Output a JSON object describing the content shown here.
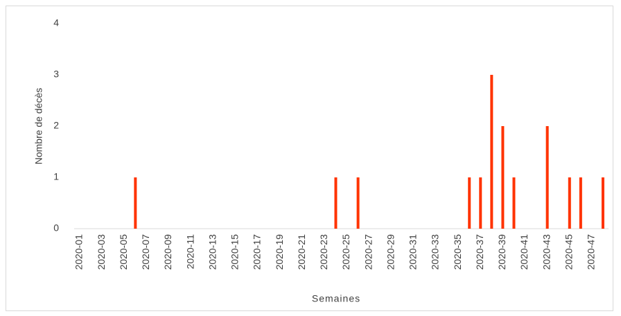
{
  "chart_data": {
    "type": "bar",
    "x_label": "Semaines",
    "y_label": "Nombre de décès",
    "categories": [
      "2020-01",
      null,
      "2020-03",
      null,
      "2020-05",
      null,
      "2020-07",
      null,
      "2020-09",
      null,
      "2020-11",
      null,
      "2020-13",
      null,
      "2020-15",
      null,
      "2020-17",
      null,
      "2020-19",
      null,
      "2020-21",
      null,
      "2020-23",
      null,
      "2020-25",
      null,
      "2020-27",
      null,
      "2020-29",
      null,
      "2020-31",
      null,
      "2020-33",
      null,
      "2020-35",
      null,
      "2020-37",
      null,
      "2020-39",
      null,
      "2020-41",
      null,
      "2020-43",
      null,
      "2020-45",
      null,
      "2020-47",
      null
    ],
    "values": [
      0,
      0,
      0,
      0,
      0,
      1,
      0,
      0,
      0,
      0,
      0,
      0,
      0,
      0,
      0,
      0,
      0,
      0,
      0,
      0,
      0,
      0,
      0,
      1,
      0,
      1,
      0,
      0,
      0,
      0,
      0,
      0,
      0,
      0,
      0,
      1,
      1,
      3,
      2,
      1,
      0,
      0,
      2,
      0,
      1,
      1,
      0,
      1
    ],
    "color": "#ff3300",
    "ylim": [
      0,
      4
    ],
    "yticks": [
      0,
      1,
      2,
      3,
      4
    ],
    "grid": false
  }
}
